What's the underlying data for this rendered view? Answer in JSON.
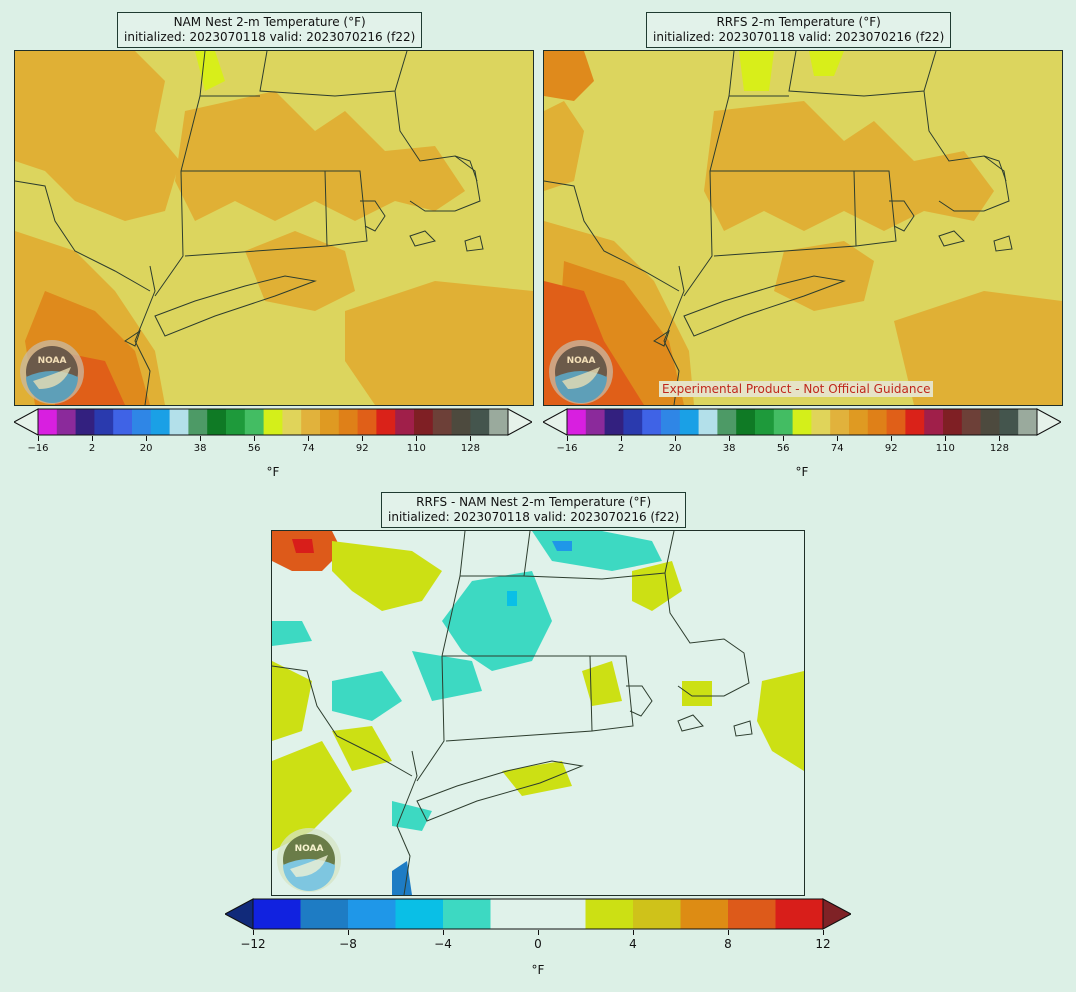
{
  "panels": {
    "nam": {
      "title_line1": "NAM Nest 2-m Temperature (°F)",
      "title_line2": "initialized: 2023070118 valid: 2023070216 (f22)"
    },
    "rrfs": {
      "title_line1": "RRFS 2-m Temperature (°F)",
      "title_line2": "initialized: 2023070118 valid: 2023070216 (f22)",
      "disclaimer": "Experimental Product - Not Official Guidance"
    },
    "diff": {
      "title_line1": "RRFS - NAM Nest 2-m Temperature (°F)",
      "title_line2": "initialized: 2023070118 valid: 2023070216 (f22)"
    }
  },
  "temp_colorbar": {
    "unit": "°F",
    "ticks": [
      "−16",
      "2",
      "20",
      "38",
      "56",
      "74",
      "92",
      "110",
      "128"
    ],
    "colors": [
      "#d81fe0",
      "#8b2a9b",
      "#33207f",
      "#2a3aae",
      "#3f63e6",
      "#2f86e6",
      "#1aa0e6",
      "#b3e0ea",
      "#4d9a66",
      "#0f7a25",
      "#1e9a3b",
      "#43bd63",
      "#d4ef1a",
      "#e0d45a",
      "#e1b23c",
      "#df9a22",
      "#df8018",
      "#e05f18",
      "#da2219",
      "#a01f4a",
      "#7f1f24",
      "#6d4038",
      "#4d4a3e",
      "#44554d",
      "#9aaa9d"
    ],
    "under_color": "#e6f2ea",
    "over_color": "#e6f2ea"
  },
  "diff_colorbar": {
    "unit": "°F",
    "ticks": [
      "−12",
      "−8",
      "−4",
      "0",
      "4",
      "8",
      "12"
    ],
    "colors": [
      "#1122e0",
      "#1e7cc4",
      "#1f97e8",
      "#0abfe6",
      "#3dd9c2",
      "#e0f2ea",
      "#e0f2ea",
      "#cce014",
      "#cfc21a",
      "#dd8c14",
      "#dd5a1a",
      "#d81e1a"
    ],
    "under_color": "#112a7a",
    "over_color": "#7f2226"
  },
  "logo": {
    "text": "NOAA",
    "icon": "noaa-logo-icon"
  }
}
